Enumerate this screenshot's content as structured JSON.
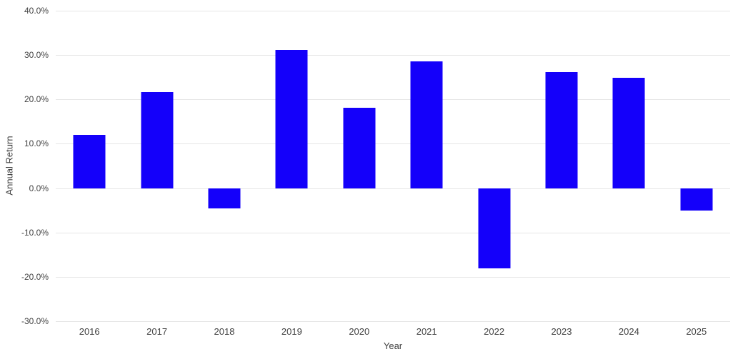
{
  "chart_data": {
    "type": "bar",
    "title": "",
    "xlabel": "Year",
    "ylabel": "Annual Return",
    "categories": [
      "2016",
      "2017",
      "2018",
      "2019",
      "2020",
      "2021",
      "2022",
      "2023",
      "2024",
      "2025"
    ],
    "values": [
      12.0,
      21.7,
      -4.6,
      31.1,
      18.1,
      28.6,
      -18.1,
      26.2,
      24.9,
      -5.0
    ],
    "series_name": "Annual Return",
    "value_unit": "percent",
    "ylim": [
      -30,
      40
    ],
    "ytick_step": 10,
    "ytick_labels": [
      "40.0%",
      "30.0%",
      "20.0%",
      "10.0%",
      "0.0%",
      "-10.0%",
      "-20.0%",
      "-30.0%"
    ],
    "legend": "none",
    "grid": true,
    "colors": {
      "bar": "#1400fa",
      "gridline": "#e6e6e6",
      "text": "#424242",
      "background": "#ffffff"
    }
  }
}
